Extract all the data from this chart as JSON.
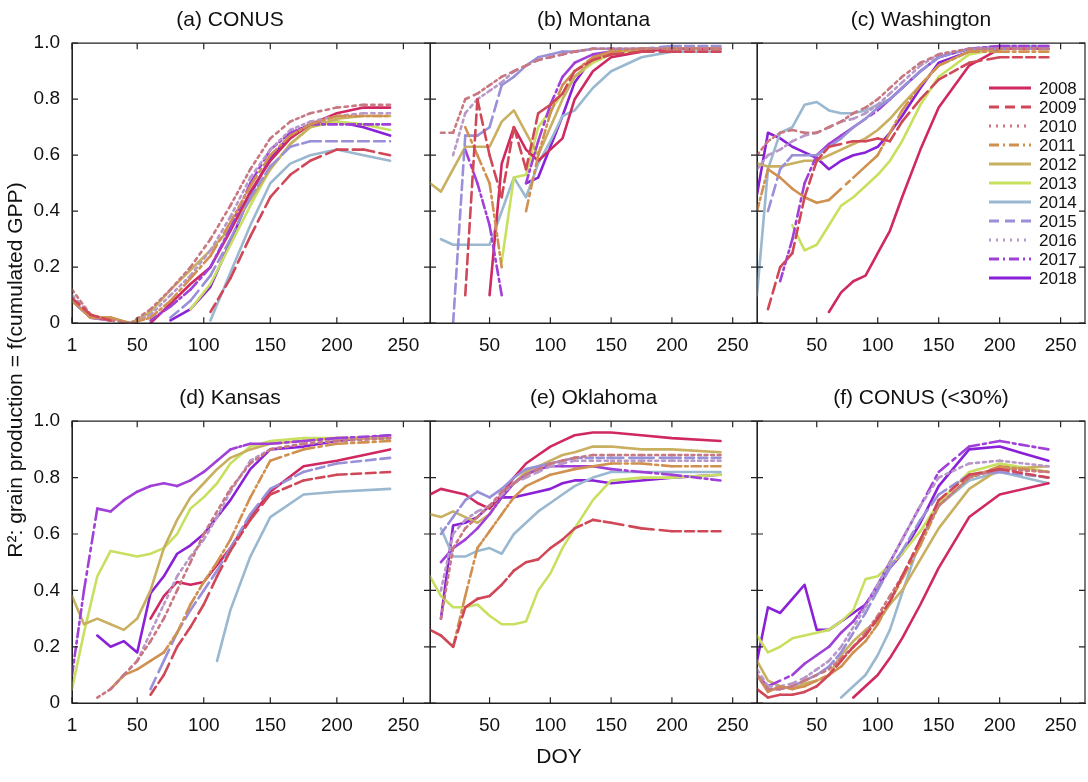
{
  "chart_data": [
    {
      "type": "line",
      "title": "(a) CONUS",
      "ylabel": "R²: grain production = f(cumulated GPP)",
      "xlim": [
        1,
        270
      ],
      "ylim": [
        0,
        1
      ],
      "xticks": [
        1,
        50,
        100,
        150,
        200,
        250
      ],
      "yticks": [
        0,
        0.2,
        0.4,
        0.6,
        0.8,
        {
          "value": 1,
          "label": "1.0"
        }
      ],
      "x": [
        1,
        15,
        30,
        45,
        60,
        75,
        90,
        105,
        120,
        135,
        150,
        165,
        180,
        200,
        220,
        240
      ],
      "series": [
        {
          "color": "#d02860",
          "line_style": "solid",
          "values": [
            0.08,
            0.02,
            0.01,
            null,
            0.0,
            0.07,
            0.14,
            0.2,
            0.33,
            0.47,
            0.58,
            0.66,
            0.71,
            0.75,
            0.77,
            0.77
          ]
        },
        {
          "color": "#d04858",
          "line_style": "dashed",
          "values": [
            0.09,
            0.03,
            0.01,
            null,
            null,
            null,
            null,
            0.04,
            0.16,
            0.31,
            0.45,
            0.53,
            0.58,
            0.62,
            0.62,
            0.6
          ]
        },
        {
          "color": "#c87880",
          "line_style": "dotted",
          "values": [
            0.12,
            0.03,
            0.01,
            0.0,
            0.05,
            0.12,
            0.2,
            0.3,
            0.42,
            0.55,
            0.66,
            0.72,
            0.75,
            0.77,
            0.78,
            0.78
          ]
        },
        {
          "color": "#d09050",
          "line_style": "dashdot",
          "values": [
            0.08,
            0.02,
            0.02,
            0.0,
            0.02,
            0.08,
            0.16,
            0.24,
            0.36,
            0.49,
            0.6,
            0.67,
            0.71,
            0.74,
            0.74,
            0.74
          ]
        },
        {
          "color": "#c8b060",
          "line_style": "solid",
          "values": [
            0.08,
            0.02,
            0.02,
            0.0,
            0.04,
            0.12,
            0.19,
            0.26,
            0.34,
            0.44,
            0.55,
            0.64,
            0.7,
            0.73,
            0.74,
            0.74
          ]
        },
        {
          "color": "#c8e060",
          "line_style": "solid",
          "values": [
            null,
            null,
            null,
            null,
            null,
            null,
            0.05,
            0.14,
            0.28,
            0.42,
            0.55,
            0.64,
            0.7,
            0.72,
            0.71,
            0.69
          ]
        },
        {
          "color": "#9ab8d0",
          "line_style": "solid",
          "values": [
            0.08,
            0.02,
            null,
            null,
            null,
            null,
            null,
            0.01,
            0.18,
            0.35,
            0.5,
            0.57,
            0.6,
            0.62,
            0.6,
            0.58
          ]
        },
        {
          "color": "#9890d8",
          "line_style": "dashed",
          "values": [
            0.08,
            0.02,
            0.01,
            null,
            null,
            0.02,
            0.08,
            0.17,
            0.3,
            0.45,
            0.56,
            0.63,
            0.65,
            0.65,
            0.65,
            0.65
          ]
        },
        {
          "color": "#b898c8",
          "line_style": "dotted",
          "values": [
            0.1,
            0.03,
            0.01,
            0.0,
            0.03,
            0.1,
            0.17,
            0.26,
            0.38,
            0.52,
            0.62,
            0.69,
            0.72,
            0.74,
            0.75,
            0.75
          ]
        },
        {
          "color": "#a040d8",
          "line_style": "dashdot",
          "values": [
            null,
            null,
            null,
            null,
            0.01,
            0.06,
            0.12,
            0.2,
            0.34,
            0.5,
            0.62,
            0.68,
            0.71,
            0.71,
            0.71,
            0.71
          ]
        },
        {
          "color": "#8a20d8",
          "line_style": "solid",
          "values": [
            null,
            null,
            null,
            null,
            null,
            0.01,
            0.05,
            0.13,
            0.29,
            0.46,
            0.59,
            0.67,
            0.71,
            0.72,
            0.7,
            0.67
          ]
        }
      ]
    },
    {
      "type": "line",
      "title": "(b) Montana",
      "tick_labels": "x",
      "xlim": [
        1,
        270
      ],
      "ylim": [
        0,
        1
      ],
      "xticks": [
        50,
        100,
        150,
        200,
        250
      ],
      "yticks": [
        0,
        0.2,
        0.4,
        0.6,
        0.8,
        1
      ],
      "x": [
        1,
        10,
        20,
        30,
        40,
        50,
        60,
        70,
        80,
        90,
        100,
        110,
        120,
        135,
        150,
        175,
        200,
        240
      ],
      "series": [
        {
          "color": "#d02860",
          "line_style": "solid",
          "values": [
            null,
            null,
            null,
            null,
            null,
            0.1,
            0.57,
            0.7,
            0.62,
            0.58,
            0.62,
            0.66,
            0.8,
            0.9,
            0.95,
            0.97,
            0.98,
            0.98
          ]
        },
        {
          "color": "#d04858",
          "line_style": "dashed",
          "values": [
            null,
            null,
            null,
            0.1,
            0.8,
            0.6,
            0.45,
            0.7,
            0.55,
            0.75,
            0.78,
            0.82,
            0.9,
            0.94,
            0.96,
            0.97,
            0.97,
            0.97
          ]
        },
        {
          "color": "#c87880",
          "line_style": "dotted",
          "values": [
            null,
            0.68,
            0.68,
            0.8,
            0.82,
            0.85,
            0.88,
            0.9,
            0.92,
            0.94,
            0.95,
            0.96,
            0.97,
            0.98,
            0.98,
            0.98,
            0.98,
            0.98
          ]
        },
        {
          "color": "#d09050",
          "line_style": "dashdot",
          "values": [
            null,
            null,
            null,
            0.7,
            0.6,
            0.5,
            0.2,
            null,
            0.4,
            0.6,
            0.75,
            0.85,
            0.9,
            0.95,
            0.97,
            0.98,
            0.98,
            0.98
          ]
        },
        {
          "color": "#c8b060",
          "line_style": "solid",
          "values": [
            0.5,
            0.47,
            0.55,
            0.63,
            0.63,
            0.63,
            0.72,
            0.76,
            0.68,
            0.6,
            0.7,
            0.8,
            0.88,
            0.94,
            0.97,
            0.98,
            0.98,
            0.98
          ]
        },
        {
          "color": "#c8e060",
          "line_style": "solid",
          "values": [
            null,
            null,
            null,
            null,
            null,
            null,
            0.22,
            0.52,
            0.53,
            0.7,
            0.76,
            0.82,
            0.88,
            0.93,
            0.96,
            0.98,
            0.98,
            0.98
          ]
        },
        {
          "color": "#9ab8d0",
          "line_style": "solid",
          "values": [
            null,
            0.3,
            0.28,
            0.28,
            0.28,
            0.28,
            0.4,
            0.52,
            0.45,
            0.57,
            0.65,
            0.74,
            0.76,
            0.84,
            0.9,
            0.95,
            0.97,
            0.97
          ]
        },
        {
          "color": "#9890d8",
          "line_style": "dashed",
          "values": [
            null,
            null,
            0.0,
            0.67,
            0.67,
            0.7,
            0.85,
            0.88,
            0.92,
            0.95,
            0.96,
            0.97,
            0.97,
            0.98,
            0.98,
            0.98,
            0.99,
            0.99
          ]
        },
        {
          "color": "#b898c8",
          "line_style": "dotted",
          "values": [
            null,
            null,
            0.6,
            0.75,
            0.8,
            0.83,
            0.86,
            0.9,
            0.92,
            0.94,
            0.95,
            0.96,
            0.97,
            0.98,
            0.98,
            0.98,
            0.98,
            0.98
          ]
        },
        {
          "color": "#a040d8",
          "line_style": "dashdot",
          "values": [
            null,
            null,
            null,
            0.62,
            0.5,
            0.35,
            0.1,
            null,
            0.5,
            0.65,
            0.78,
            0.88,
            0.93,
            0.96,
            0.97,
            null,
            null,
            null
          ]
        },
        {
          "color": "#8a20d8",
          "line_style": "solid",
          "values": [
            null,
            null,
            null,
            null,
            null,
            null,
            null,
            null,
            0.5,
            0.52,
            0.63,
            0.74,
            0.86,
            0.95,
            0.97,
            0.98,
            null,
            null
          ]
        }
      ]
    },
    {
      "type": "line",
      "title": "(c) Washington",
      "tick_labels": "x",
      "legend": "right",
      "xlim": [
        1,
        270
      ],
      "ylim": [
        0,
        1
      ],
      "xticks": [
        50,
        100,
        150,
        200,
        250
      ],
      "yticks": [
        0,
        0.2,
        0.4,
        0.6,
        0.8,
        1
      ],
      "x": [
        1,
        10,
        20,
        30,
        40,
        50,
        60,
        70,
        80,
        90,
        100,
        110,
        120,
        135,
        150,
        175,
        200,
        240
      ],
      "series": [
        {
          "name": "2008",
          "color": "#d02860",
          "line_style": "solid",
          "values": [
            null,
            null,
            null,
            null,
            null,
            null,
            0.04,
            0.11,
            0.15,
            0.17,
            0.25,
            0.33,
            0.45,
            0.62,
            0.77,
            0.92,
            0.98,
            0.98
          ]
        },
        {
          "name": "2009",
          "color": "#d04858",
          "line_style": "dashed",
          "values": [
            null,
            0.05,
            0.2,
            0.25,
            0.45,
            0.58,
            0.63,
            0.64,
            0.65,
            0.65,
            0.66,
            0.65,
            0.72,
            0.8,
            0.87,
            0.93,
            0.95,
            0.95
          ]
        },
        {
          "name": "2010",
          "color": "#c87880",
          "line_style": "dotted",
          "values": [
            0.6,
            0.65,
            0.68,
            0.69,
            0.68,
            0.68,
            0.7,
            0.72,
            0.75,
            0.77,
            0.8,
            0.84,
            0.88,
            0.93,
            0.96,
            0.98,
            0.98,
            0.98
          ]
        },
        {
          "name": "2011",
          "color": "#d09050",
          "line_style": "dashdot",
          "values": [
            0.4,
            0.55,
            0.52,
            0.48,
            0.45,
            0.43,
            0.44,
            0.48,
            0.52,
            0.56,
            0.6,
            0.68,
            0.76,
            0.85,
            0.92,
            0.97,
            0.97,
            0.97
          ]
        },
        {
          "name": "2012",
          "color": "#c8b060",
          "line_style": "solid",
          "values": [
            0.57,
            0.56,
            0.56,
            0.57,
            0.58,
            0.58,
            0.6,
            0.62,
            0.64,
            0.66,
            0.69,
            0.73,
            0.78,
            0.85,
            0.92,
            0.97,
            0.98,
            0.98
          ]
        },
        {
          "name": "2013",
          "color": "#c8e060",
          "line_style": "solid",
          "values": [
            null,
            null,
            null,
            0.35,
            0.26,
            0.28,
            0.35,
            0.42,
            0.45,
            0.49,
            0.53,
            0.58,
            0.65,
            0.78,
            0.88,
            0.96,
            0.98,
            0.98
          ]
        },
        {
          "name": "2014",
          "color": "#9ab8d0",
          "line_style": "solid",
          "values": [
            0.1,
            0.55,
            0.68,
            0.7,
            0.78,
            0.79,
            0.76,
            0.75,
            0.75,
            0.76,
            0.78,
            0.8,
            0.84,
            0.9,
            0.95,
            0.98,
            0.99,
            0.99
          ]
        },
        {
          "name": "2015",
          "color": "#9890d8",
          "line_style": "dashed",
          "values": [
            null,
            0.4,
            0.55,
            0.6,
            0.6,
            0.6,
            0.63,
            0.66,
            0.7,
            0.73,
            0.77,
            0.8,
            0.84,
            0.9,
            0.95,
            0.98,
            0.98,
            0.98
          ]
        },
        {
          "name": "2016",
          "color": "#b898c8",
          "line_style": "dotted",
          "values": [
            0.55,
            0.6,
            0.62,
            0.65,
            0.67,
            0.68,
            0.7,
            0.72,
            0.73,
            0.75,
            0.78,
            0.82,
            0.86,
            0.92,
            0.96,
            0.98,
            0.98,
            0.98
          ]
        },
        {
          "name": "2017",
          "color": "#a040d8",
          "line_style": "dashdot",
          "values": [
            null,
            null,
            0.15,
            0.3,
            0.5,
            0.6,
            0.64,
            0.67,
            0.7,
            0.73,
            0.76,
            0.8,
            0.84,
            0.9,
            0.95,
            0.98,
            0.99,
            0.99
          ]
        },
        {
          "name": "2018",
          "color": "#8a20d8",
          "line_style": "solid",
          "values": [
            0.46,
            0.68,
            0.66,
            0.63,
            0.61,
            0.59,
            0.55,
            0.58,
            0.6,
            0.61,
            0.63,
            0.68,
            0.74,
            0.84,
            0.93,
            0.97,
            0.98,
            0.98
          ]
        }
      ]
    },
    {
      "type": "line",
      "title": "(d) Kansas",
      "xlim": [
        1,
        270
      ],
      "ylim": [
        0,
        1
      ],
      "xticks": [
        1,
        50,
        100,
        150,
        200,
        250
      ],
      "yticks": [
        0,
        0.2,
        0.4,
        0.6,
        0.8,
        {
          "value": 1,
          "label": "1.0"
        }
      ],
      "x": [
        1,
        10,
        20,
        30,
        40,
        50,
        60,
        70,
        80,
        90,
        100,
        110,
        120,
        135,
        150,
        175,
        200,
        240
      ],
      "series": [
        {
          "color": "#d02860",
          "line_style": "solid",
          "values": [
            null,
            null,
            null,
            null,
            null,
            null,
            0.3,
            0.38,
            0.43,
            0.42,
            0.43,
            0.49,
            0.55,
            0.66,
            0.75,
            0.84,
            0.86,
            0.9
          ]
        },
        {
          "color": "#d04858",
          "line_style": "dashed",
          "values": [
            null,
            null,
            null,
            null,
            null,
            null,
            0.03,
            0.1,
            0.2,
            0.27,
            0.35,
            0.45,
            0.54,
            0.65,
            0.74,
            0.79,
            0.81,
            0.82
          ]
        },
        {
          "color": "#c87880",
          "line_style": "dotted",
          "values": [
            null,
            null,
            0.02,
            0.05,
            0.1,
            0.15,
            0.22,
            0.3,
            0.4,
            0.5,
            0.6,
            0.68,
            0.76,
            0.85,
            0.9,
            0.92,
            0.93,
            0.94
          ]
        },
        {
          "color": "#d09050",
          "line_style": "dashdot",
          "values": [
            null,
            null,
            null,
            0.05,
            0.1,
            0.12,
            0.15,
            0.18,
            0.25,
            0.35,
            0.43,
            0.5,
            0.58,
            0.73,
            0.86,
            0.9,
            0.92,
            0.93
          ]
        },
        {
          "color": "#c8b060",
          "line_style": "solid",
          "values": [
            0.38,
            0.28,
            0.3,
            0.28,
            0.26,
            0.3,
            0.4,
            0.55,
            0.65,
            0.73,
            0.78,
            0.83,
            0.87,
            0.9,
            0.92,
            0.93,
            0.94,
            0.94
          ]
        },
        {
          "color": "#c8e060",
          "line_style": "solid",
          "values": [
            0.05,
            0.25,
            0.45,
            0.54,
            0.53,
            0.52,
            0.53,
            0.55,
            0.6,
            0.69,
            0.73,
            0.78,
            0.85,
            0.91,
            0.93,
            0.94,
            0.94,
            0.94
          ]
        },
        {
          "color": "#9ab8d0",
          "line_style": "solid",
          "values": [
            null,
            null,
            null,
            null,
            null,
            null,
            null,
            null,
            null,
            null,
            null,
            0.15,
            0.33,
            0.52,
            0.66,
            0.74,
            0.75,
            0.76
          ]
        },
        {
          "color": "#9890d8",
          "line_style": "dashed",
          "values": [
            null,
            null,
            null,
            null,
            null,
            null,
            0.05,
            0.15,
            0.25,
            0.33,
            0.4,
            0.47,
            0.55,
            0.67,
            0.76,
            0.82,
            0.85,
            0.87
          ]
        },
        {
          "color": "#b898c8",
          "line_style": "dotted",
          "values": [
            null,
            null,
            null,
            0.05,
            0.1,
            0.15,
            0.25,
            0.35,
            0.45,
            0.52,
            0.58,
            0.66,
            0.75,
            0.86,
            0.9,
            0.92,
            0.93,
            0.94
          ]
        },
        {
          "color": "#a040d8",
          "line_style": "dashdot",
          "values": [
            0.1,
            0.4,
            0.69,
            0.68,
            0.72,
            0.75,
            0.77,
            0.78,
            0.77,
            0.79,
            0.82,
            0.86,
            0.9,
            0.92,
            0.92,
            0.93,
            0.94,
            0.95
          ]
        },
        {
          "color": "#8a20d8",
          "line_style": "solid",
          "values": [
            null,
            null,
            0.24,
            0.2,
            0.22,
            0.18,
            0.39,
            0.45,
            0.53,
            0.56,
            0.6,
            0.66,
            0.72,
            0.83,
            0.9,
            0.91,
            0.93,
            0.95
          ]
        }
      ]
    },
    {
      "type": "line",
      "title": "(e) Oklahoma",
      "xlabel": "DOY",
      "tick_labels": "x",
      "xlim": [
        1,
        270
      ],
      "ylim": [
        0,
        1
      ],
      "xticks": [
        50,
        100,
        150,
        200,
        250
      ],
      "yticks": [
        0,
        0.2,
        0.4,
        0.6,
        0.8,
        1
      ],
      "x": [
        1,
        10,
        20,
        30,
        40,
        50,
        60,
        70,
        80,
        90,
        100,
        110,
        120,
        135,
        150,
        175,
        200,
        240
      ],
      "series": [
        {
          "color": "#d02860",
          "line_style": "solid",
          "values": [
            0.74,
            0.76,
            0.75,
            0.74,
            0.71,
            0.69,
            0.74,
            0.8,
            0.85,
            0.88,
            0.91,
            0.93,
            0.95,
            0.96,
            0.96,
            0.95,
            0.94,
            0.93
          ]
        },
        {
          "color": "#d04858",
          "line_style": "dashed",
          "values": [
            0.26,
            0.24,
            0.2,
            0.34,
            0.37,
            0.38,
            0.42,
            0.47,
            0.5,
            0.51,
            0.55,
            0.58,
            0.62,
            0.65,
            0.64,
            0.62,
            0.61,
            0.61
          ]
        },
        {
          "color": "#c87880",
          "line_style": "dotted",
          "values": [
            null,
            0.3,
            0.55,
            0.62,
            0.66,
            0.7,
            0.75,
            0.78,
            0.81,
            0.83,
            0.85,
            0.86,
            0.87,
            0.88,
            0.88,
            0.88,
            0.88,
            0.88
          ]
        },
        {
          "color": "#d09050",
          "line_style": "dashdot",
          "values": [
            null,
            null,
            0.2,
            0.38,
            0.55,
            0.61,
            0.67,
            0.73,
            0.77,
            0.79,
            0.81,
            0.82,
            0.83,
            0.84,
            0.85,
            0.85,
            0.84,
            0.84
          ]
        },
        {
          "color": "#c8b060",
          "line_style": "solid",
          "values": [
            0.67,
            0.66,
            0.68,
            0.66,
            0.64,
            0.67,
            0.73,
            0.78,
            0.82,
            0.84,
            0.86,
            0.88,
            0.89,
            0.91,
            0.91,
            0.9,
            0.9,
            0.89
          ]
        },
        {
          "color": "#c8e060",
          "line_style": "solid",
          "values": [
            0.45,
            0.38,
            0.34,
            0.34,
            0.35,
            0.31,
            0.28,
            0.28,
            0.29,
            0.4,
            0.46,
            0.55,
            0.62,
            0.72,
            0.79,
            0.8,
            0.8,
            0.81
          ]
        },
        {
          "color": "#9ab8d0",
          "line_style": "solid",
          "values": [
            null,
            0.62,
            0.52,
            0.52,
            0.54,
            0.55,
            0.53,
            0.6,
            0.64,
            0.68,
            0.71,
            0.74,
            0.77,
            0.8,
            0.82,
            0.82,
            0.82,
            0.82
          ]
        },
        {
          "color": "#9890d8",
          "line_style": "dashed",
          "values": [
            null,
            0.6,
            0.66,
            0.72,
            0.75,
            0.73,
            0.76,
            0.8,
            0.83,
            0.84,
            0.85,
            0.86,
            0.87,
            0.87,
            0.87,
            0.87,
            0.87,
            0.87
          ]
        },
        {
          "color": "#b898c8",
          "line_style": "dotted",
          "values": [
            null,
            0.4,
            0.6,
            0.65,
            0.68,
            0.7,
            0.74,
            0.78,
            0.8,
            0.82,
            0.84,
            0.85,
            0.86,
            0.86,
            0.86,
            0.86,
            0.86,
            0.86
          ]
        },
        {
          "color": "#a040d8",
          "line_style": "dashdot",
          "values": [
            null,
            0.5,
            0.55,
            0.58,
            0.62,
            0.67,
            0.73,
            0.78,
            0.81,
            0.83,
            0.84,
            0.84,
            0.84,
            0.84,
            0.83,
            0.82,
            0.81,
            0.79
          ]
        },
        {
          "color": "#8a20d8",
          "line_style": "solid",
          "values": [
            null,
            0.3,
            0.63,
            0.64,
            0.66,
            0.7,
            0.73,
            0.73,
            0.74,
            0.75,
            0.76,
            0.78,
            0.79,
            0.79,
            0.78,
            0.79,
            0.8,
            0.81
          ]
        }
      ]
    },
    {
      "type": "line",
      "title": "(f) CONUS (<30%)",
      "tick_labels": "x",
      "xlim": [
        1,
        270
      ],
      "ylim": [
        0,
        1
      ],
      "xticks": [
        50,
        100,
        150,
        200,
        250
      ],
      "yticks": [
        0,
        0.2,
        0.4,
        0.6,
        0.8,
        1
      ],
      "x": [
        1,
        10,
        20,
        30,
        40,
        50,
        60,
        70,
        80,
        90,
        100,
        110,
        120,
        135,
        150,
        175,
        200,
        240
      ],
      "series": [
        {
          "color": "#d02860",
          "line_style": "solid",
          "values": [
            null,
            null,
            null,
            null,
            null,
            null,
            null,
            null,
            0.02,
            0.06,
            0.1,
            0.16,
            0.23,
            0.35,
            0.48,
            0.66,
            0.74,
            0.78
          ]
        },
        {
          "color": "#d04858",
          "line_style": "dashed",
          "values": [
            0.05,
            0.02,
            0.03,
            0.03,
            0.04,
            0.06,
            0.1,
            0.15,
            0.2,
            0.24,
            0.3,
            0.36,
            0.45,
            0.58,
            0.72,
            0.81,
            0.83,
            0.8
          ]
        },
        {
          "color": "#c87880",
          "line_style": "dotted",
          "values": [
            0.1,
            0.05,
            0.05,
            0.06,
            0.08,
            0.1,
            0.12,
            0.16,
            0.2,
            0.25,
            0.31,
            0.38,
            0.45,
            0.58,
            0.7,
            0.8,
            0.83,
            0.82
          ]
        },
        {
          "color": "#d09050",
          "line_style": "dashdot",
          "values": [
            0.1,
            0.04,
            0.06,
            0.05,
            0.06,
            0.08,
            0.1,
            0.13,
            0.18,
            0.22,
            0.28,
            0.36,
            0.44,
            0.56,
            0.7,
            0.8,
            0.84,
            0.82
          ]
        },
        {
          "color": "#c8b060",
          "line_style": "solid",
          "values": [
            0.15,
            0.08,
            0.06,
            0.05,
            0.07,
            0.08,
            0.1,
            0.17,
            0.22,
            0.26,
            0.29,
            0.35,
            0.4,
            0.51,
            0.62,
            0.76,
            0.83,
            0.84
          ]
        },
        {
          "color": "#c8e060",
          "line_style": "solid",
          "values": [
            0.24,
            0.18,
            0.2,
            0.23,
            0.24,
            0.25,
            0.26,
            0.29,
            0.33,
            0.44,
            0.45,
            0.49,
            0.53,
            0.61,
            0.71,
            0.82,
            0.85,
            0.82
          ]
        },
        {
          "color": "#9ab8d0",
          "line_style": "solid",
          "values": [
            null,
            null,
            null,
            null,
            null,
            null,
            null,
            0.02,
            0.06,
            0.1,
            0.17,
            0.26,
            0.39,
            0.58,
            0.7,
            0.79,
            0.82,
            0.78
          ]
        },
        {
          "color": "#9890d8",
          "line_style": "dashed",
          "values": [
            0.1,
            0.05,
            0.05,
            0.06,
            0.08,
            0.1,
            0.13,
            0.18,
            0.25,
            0.32,
            0.4,
            0.48,
            0.54,
            0.65,
            0.74,
            0.81,
            0.82,
            0.8
          ]
        },
        {
          "color": "#b898c8",
          "line_style": "dotted",
          "values": [
            0.12,
            0.06,
            0.06,
            0.07,
            0.09,
            0.12,
            0.15,
            0.2,
            0.27,
            0.34,
            0.42,
            0.5,
            0.58,
            0.7,
            0.8,
            0.85,
            0.86,
            0.84
          ]
        },
        {
          "color": "#a040d8",
          "line_style": "dashdot",
          "values": [
            0.1,
            0.06,
            0.08,
            0.1,
            0.14,
            0.17,
            0.2,
            0.25,
            0.29,
            0.35,
            0.42,
            0.5,
            0.58,
            0.7,
            0.82,
            0.91,
            0.93,
            0.9
          ]
        },
        {
          "color": "#8a20d8",
          "line_style": "solid",
          "values": [
            0.15,
            0.34,
            0.32,
            0.37,
            0.42,
            0.26,
            0.26,
            0.29,
            0.32,
            0.35,
            0.41,
            0.48,
            0.53,
            0.64,
            0.77,
            0.9,
            0.91,
            0.86
          ]
        }
      ]
    }
  ]
}
